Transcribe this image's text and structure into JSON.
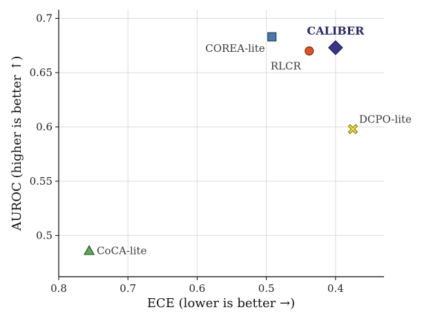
{
  "chart_data": {
    "type": "scatter",
    "xlabel": "ECE  (lower is better →)",
    "ylabel": "AUROC  (higher is better ↑)",
    "xlim": [
      0.8,
      0.33
    ],
    "ylim": [
      0.462,
      0.708
    ],
    "x_inverted": true,
    "grid": true,
    "x_ticks": [
      0.8,
      0.7,
      0.6,
      0.5,
      0.4
    ],
    "x_tick_labels": [
      "0.8",
      "0.7",
      "0.6",
      "0.5",
      "0.4"
    ],
    "y_ticks": [
      0.5,
      0.55,
      0.6,
      0.65,
      0.7
    ],
    "y_tick_labels": [
      "0.5",
      "0.55",
      "0.6",
      "0.65",
      "0.7"
    ],
    "points": [
      {
        "label": "CALIBER",
        "x": 0.4,
        "y": 0.673,
        "marker": "diamond",
        "color": "#3b3589",
        "edge": "#1e1a55",
        "highlight": true
      },
      {
        "label": "RLCR",
        "x": 0.438,
        "y": 0.67,
        "marker": "circle",
        "color": "#d9542b",
        "edge": "#7a2a10",
        "highlight": false
      },
      {
        "label": "COREA-lite",
        "x": 0.492,
        "y": 0.683,
        "marker": "square",
        "color": "#4a78a8",
        "edge": "#22405e",
        "highlight": false
      },
      {
        "label": "DCPO-lite",
        "x": 0.375,
        "y": 0.598,
        "marker": "x",
        "color": "#f4e03a",
        "edge": "#8a7a10",
        "highlight": false
      },
      {
        "label": "CoCA-lite",
        "x": 0.756,
        "y": 0.486,
        "marker": "triangle",
        "color": "#5ba85a",
        "edge": "#275526",
        "highlight": false
      }
    ]
  }
}
